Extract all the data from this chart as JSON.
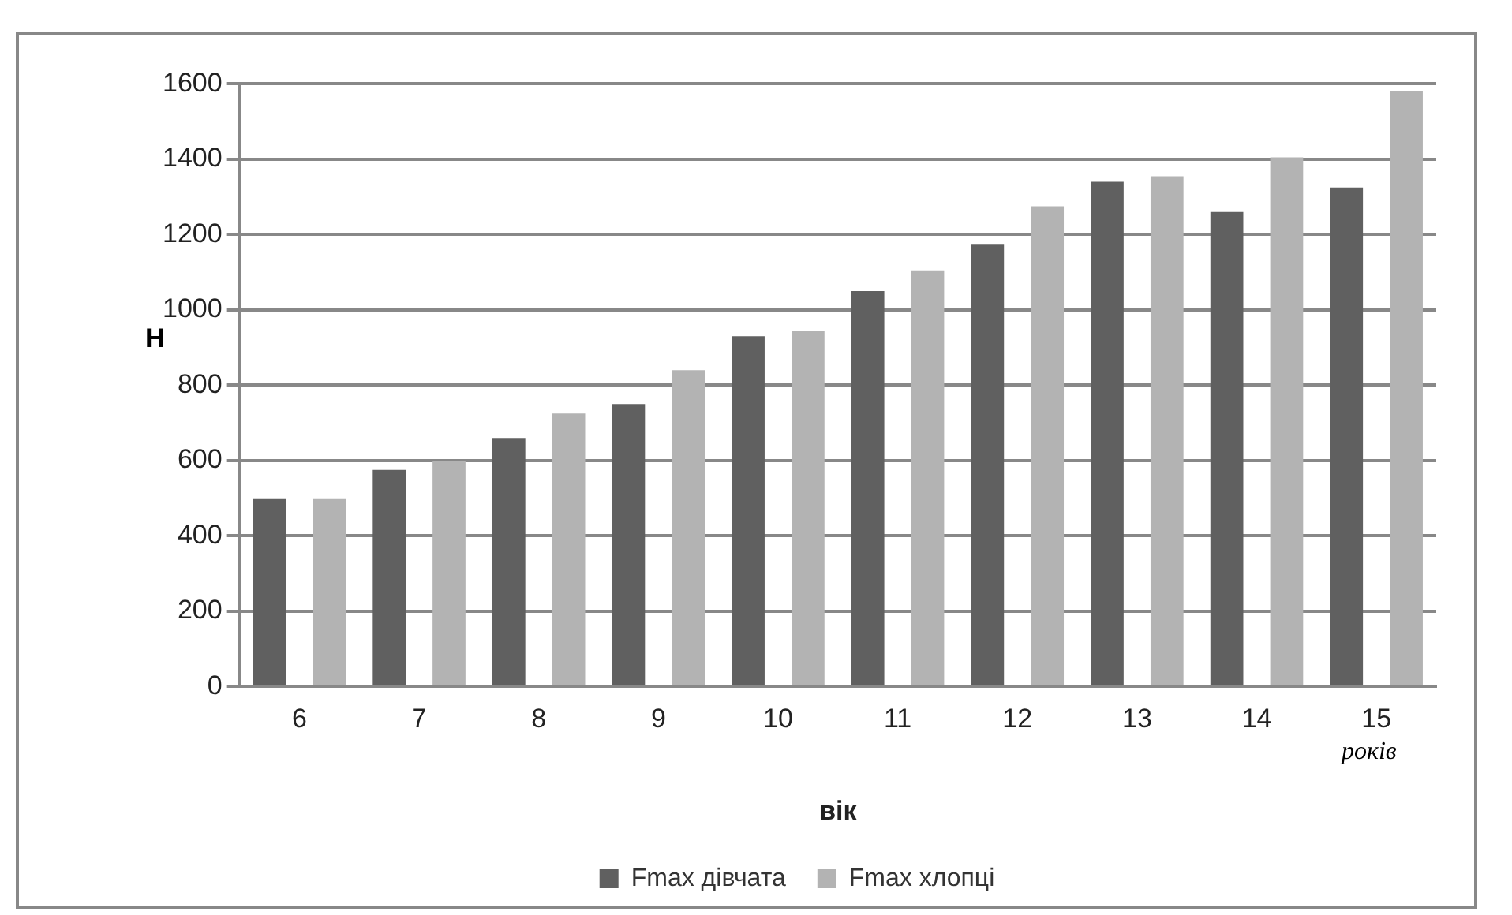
{
  "chart_data": {
    "type": "bar",
    "xlabel": "вік",
    "ylabel": "Н",
    "annotations": [
      "років"
    ],
    "categories": [
      "6",
      "7",
      "8",
      "9",
      "10",
      "11",
      "12",
      "13",
      "14",
      "15"
    ],
    "series": [
      {
        "name": "Fmax дівчата",
        "color": "#606060",
        "values": [
          500,
          575,
          660,
          750,
          930,
          1050,
          1175,
          1340,
          1260,
          1325
        ]
      },
      {
        "name": "Fmax хлопці",
        "color": "#b3b3b3",
        "values": [
          500,
          600,
          725,
          840,
          945,
          1105,
          1275,
          1355,
          1405,
          1580
        ]
      }
    ],
    "ylim": [
      0,
      1600
    ],
    "yticks": [
      0,
      200,
      400,
      600,
      800,
      1000,
      1200,
      1400,
      1600
    ],
    "grid": "y",
    "legend": "bottom"
  }
}
